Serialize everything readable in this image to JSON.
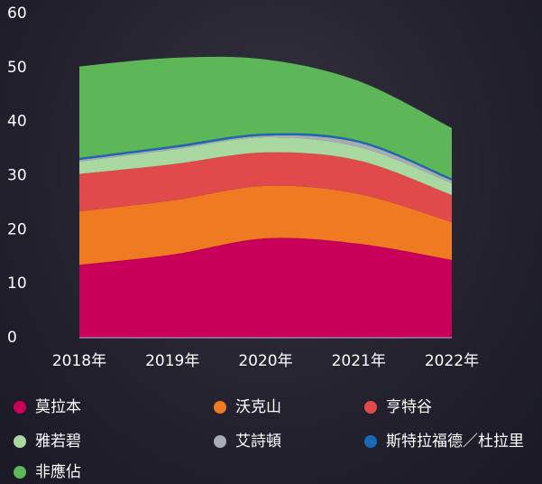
{
  "chart_data": {
    "type": "stacked_area",
    "categories": [
      "2018年",
      "2019年",
      "2020年",
      "2021年",
      "2022年"
    ],
    "series": [
      {
        "name": "莫拉本",
        "color": "#c8005a",
        "values": [
          13.5,
          15.4,
          18.4,
          17.4,
          14.4
        ]
      },
      {
        "name": "沃克山",
        "color": "#f07a22",
        "values": [
          9.9,
          10.0,
          9.7,
          9.2,
          7.0
        ]
      },
      {
        "name": "亨特谷",
        "color": "#e04a4a",
        "values": [
          6.9,
          6.7,
          6.2,
          6.2,
          5.0
        ]
      },
      {
        "name": "雅若碧",
        "color": "#a9d9a1",
        "values": [
          2.3,
          2.7,
          2.8,
          2.5,
          2.2
        ]
      },
      {
        "name": "艾詩頓",
        "color": "#a9abb5",
        "values": [
          0.3,
          0.3,
          0.3,
          0.8,
          0.5
        ]
      },
      {
        "name": "斯特拉福德／杜拉里",
        "color": "#1b68b5",
        "values": [
          0.4,
          0.4,
          0.4,
          0.4,
          0.4
        ]
      },
      {
        "name": "非應佔",
        "color": "#5db657",
        "values": [
          16.9,
          16.3,
          13.7,
          11.0,
          9.3
        ]
      }
    ],
    "ylim": [
      0,
      60
    ],
    "yticks": [
      0,
      10,
      20,
      30,
      40,
      50,
      60
    ],
    "grid": false
  }
}
